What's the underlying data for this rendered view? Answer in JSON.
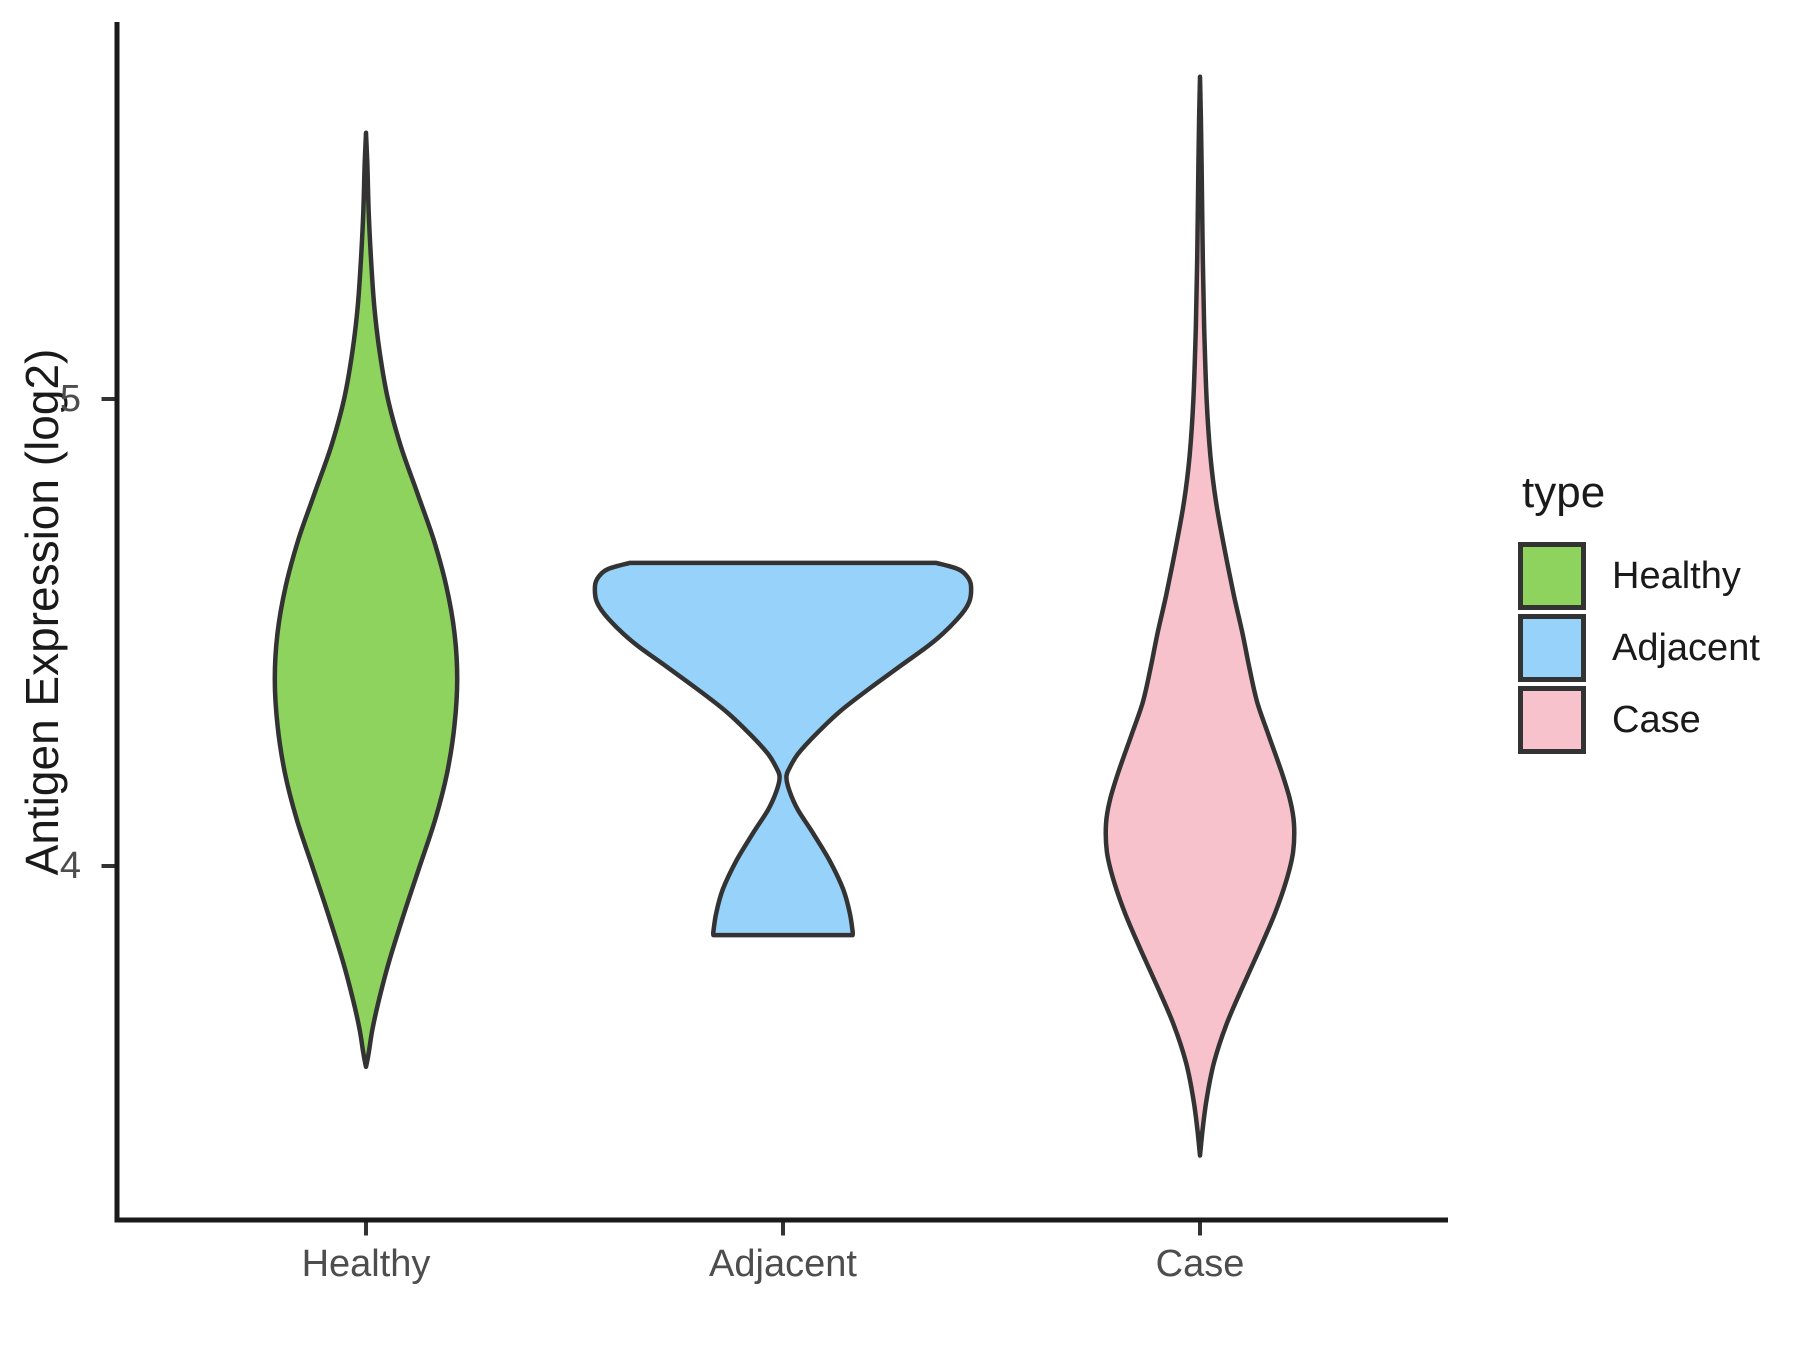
{
  "chart_data": {
    "type": "violin",
    "title": "",
    "xlabel": "",
    "ylabel": "Antigen Expression (log2)",
    "categories": [
      "Healthy",
      "Adjacent",
      "Case"
    ],
    "y_axis": {
      "ticks": [
        5,
        4
      ],
      "range_approx": [
        3.2,
        5.85
      ],
      "grid": "off"
    },
    "legend": {
      "title": "type",
      "position": "right",
      "entries": [
        {
          "label": "Healthy",
          "color": "#8dd35e"
        },
        {
          "label": "Adjacent",
          "color": "#96d2fa"
        },
        {
          "label": "Case",
          "color": "#f8c2cd"
        }
      ]
    },
    "style": {
      "outline_color": "#333333",
      "axis_color": "#1a1a1a",
      "tick_color": "#333333",
      "tick_label_color": "#4d4d4d",
      "background": "#ffffff"
    },
    "series": [
      {
        "name": "Healthy",
        "fill": "#8dd35e",
        "trimmed": false,
        "y_min": 3.57,
        "y_peak": 4.4,
        "y_max": 5.57,
        "relative_max_width": 0.485,
        "density_profile": [
          [
            5.57,
            0
          ],
          [
            5.5,
            0.015
          ],
          [
            5.4,
            0.03
          ],
          [
            5.3,
            0.055
          ],
          [
            5.2,
            0.09
          ],
          [
            5.1,
            0.15
          ],
          [
            5.0,
            0.24
          ],
          [
            4.9,
            0.38
          ],
          [
            4.8,
            0.56
          ],
          [
            4.7,
            0.74
          ],
          [
            4.6,
            0.88
          ],
          [
            4.5,
            0.97
          ],
          [
            4.4,
            1.0
          ],
          [
            4.3,
            0.97
          ],
          [
            4.2,
            0.89
          ],
          [
            4.1,
            0.76
          ],
          [
            4.0,
            0.59
          ],
          [
            3.9,
            0.42
          ],
          [
            3.8,
            0.26
          ],
          [
            3.72,
            0.15
          ],
          [
            3.65,
            0.07
          ],
          [
            3.6,
            0.03
          ],
          [
            3.57,
            0
          ]
        ]
      },
      {
        "name": "Adjacent",
        "fill": "#96d2fa",
        "trimmed": true,
        "y_min": 3.85,
        "y_peak": 4.6,
        "y_max": 4.65,
        "relative_max_width": 1.0,
        "density_profile": [
          [
            4.649,
            0.815
          ],
          [
            4.636,
            0.93
          ],
          [
            4.62,
            0.98
          ],
          [
            4.6,
            1.0
          ],
          [
            4.565,
            0.99
          ],
          [
            4.53,
            0.93
          ],
          [
            4.48,
            0.8
          ],
          [
            4.43,
            0.63
          ],
          [
            4.38,
            0.46
          ],
          [
            4.33,
            0.3
          ],
          [
            4.28,
            0.17
          ],
          [
            4.24,
            0.08
          ],
          [
            4.21,
            0.035
          ],
          [
            4.19,
            0.018
          ],
          [
            4.16,
            0.035
          ],
          [
            4.12,
            0.08
          ],
          [
            4.07,
            0.16
          ],
          [
            4.01,
            0.25
          ],
          [
            3.95,
            0.32
          ],
          [
            3.9,
            0.355
          ],
          [
            3.86,
            0.37
          ],
          [
            3.852,
            0.37
          ]
        ]
      },
      {
        "name": "Case",
        "fill": "#f8c2cd",
        "trimmed": false,
        "y_min": 3.38,
        "y_peak": 4.08,
        "y_max": 5.69,
        "relative_max_width": 0.5,
        "density_profile": [
          [
            5.69,
            0
          ],
          [
            5.6,
            0.01
          ],
          [
            5.45,
            0.02
          ],
          [
            5.3,
            0.03
          ],
          [
            5.15,
            0.045
          ],
          [
            5.0,
            0.07
          ],
          [
            4.88,
            0.11
          ],
          [
            4.78,
            0.17
          ],
          [
            4.68,
            0.26
          ],
          [
            4.58,
            0.36
          ],
          [
            4.5,
            0.45
          ],
          [
            4.42,
            0.53
          ],
          [
            4.35,
            0.61
          ],
          [
            4.28,
            0.73
          ],
          [
            4.2,
            0.87
          ],
          [
            4.14,
            0.96
          ],
          [
            4.09,
            1.0
          ],
          [
            4.03,
            0.99
          ],
          [
            3.97,
            0.92
          ],
          [
            3.9,
            0.8
          ],
          [
            3.82,
            0.63
          ],
          [
            3.74,
            0.45
          ],
          [
            3.66,
            0.28
          ],
          [
            3.58,
            0.15
          ],
          [
            3.5,
            0.07
          ],
          [
            3.43,
            0.025
          ],
          [
            3.38,
            0
          ]
        ]
      }
    ]
  }
}
